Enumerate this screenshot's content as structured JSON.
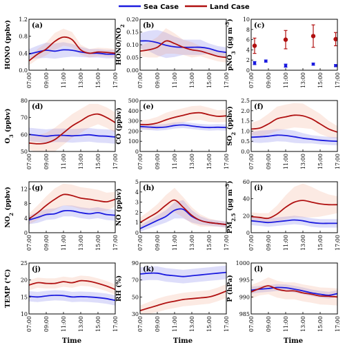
{
  "legend": [
    {
      "label": "Sea Case",
      "color": "#1a1adf"
    },
    {
      "label": "Land Case",
      "color": "#b01010"
    }
  ],
  "x_axis_label": "Time",
  "chart_data": [
    {
      "panel": "(a)",
      "type": "line",
      "ylabel": "HONO (ppbv)",
      "ylim": [
        0,
        1.2
      ],
      "yticks": [
        0,
        0.4,
        0.8,
        1.2
      ],
      "x": [
        "07:00",
        "08:00",
        "09:00",
        "10:00",
        "11:00",
        "12:00",
        "13:00",
        "14:00",
        "15:00",
        "16:00",
        "17:00"
      ],
      "xticks": [
        "07:00",
        "09:00",
        "11:00",
        "13:00",
        "15:00",
        "17:00"
      ],
      "series": [
        {
          "name": "Sea Case",
          "values": [
            0.38,
            0.43,
            0.47,
            0.45,
            0.48,
            0.47,
            0.43,
            0.4,
            0.4,
            0.38,
            0.38
          ],
          "band": [
            0.12,
            0.15,
            0.18,
            0.18,
            0.18,
            0.15,
            0.12,
            0.1,
            0.1,
            0.1,
            0.1
          ]
        },
        {
          "name": "Land Case",
          "values": [
            0.22,
            0.38,
            0.5,
            0.68,
            0.78,
            0.72,
            0.48,
            0.4,
            0.43,
            0.42,
            0.4
          ],
          "band": [
            0.1,
            0.12,
            0.15,
            0.2,
            0.2,
            0.18,
            0.12,
            0.1,
            0.1,
            0.1,
            0.1
          ]
        }
      ]
    },
    {
      "panel": "(b)",
      "type": "line",
      "ylabel": "HONO/NO2",
      "ylim": [
        0,
        0.2
      ],
      "yticks": [
        0,
        0.05,
        0.1,
        0.15,
        0.2
      ],
      "x": [
        "07:00",
        "08:00",
        "09:00",
        "10:00",
        "11:00",
        "12:00",
        "13:00",
        "14:00",
        "15:00",
        "16:00",
        "17:00"
      ],
      "xticks": [
        "07:00",
        "09:00",
        "11:00",
        "13:00",
        "15:00",
        "17:00"
      ],
      "series": [
        {
          "name": "Sea Case",
          "values": [
            0.115,
            0.115,
            0.108,
            0.098,
            0.092,
            0.09,
            0.09,
            0.09,
            0.085,
            0.075,
            0.07
          ],
          "band": [
            0.03,
            0.04,
            0.05,
            0.05,
            0.04,
            0.03,
            0.03,
            0.03,
            0.02,
            0.02,
            0.02
          ]
        },
        {
          "name": "Land Case",
          "values": [
            0.075,
            0.08,
            0.09,
            0.115,
            0.105,
            0.09,
            0.08,
            0.075,
            0.065,
            0.055,
            0.05
          ],
          "band": [
            0.02,
            0.03,
            0.04,
            0.05,
            0.04,
            0.03,
            0.03,
            0.02,
            0.02,
            0.02,
            0.02
          ]
        }
      ]
    },
    {
      "panel": "(c)",
      "type": "scatter",
      "ylabel": "pNO3 (μg m-3)",
      "ylim": [
        0,
        10
      ],
      "yticks": [
        0,
        2,
        4,
        6,
        8,
        10
      ],
      "x": [
        "07:00",
        "09:00",
        "11:00",
        "13:00",
        "15:00",
        "17:00"
      ],
      "xticks": [
        "07:00",
        "09:00",
        "11:00",
        "13:00",
        "15:00",
        "17:00"
      ],
      "series": [
        {
          "name": "Sea Case",
          "points": [
            {
              "x": 7.4,
              "y": 1.4,
              "err": 0.3
            },
            {
              "x": 8.7,
              "y": 1.8,
              "err": 0.2
            },
            {
              "x": 11.0,
              "y": 0.9,
              "err": 0.3
            },
            {
              "x": 14.2,
              "y": 1.2,
              "err": 0.2
            },
            {
              "x": 16.8,
              "y": 0.9,
              "err": 0.2
            }
          ]
        },
        {
          "name": "Land Case",
          "points": [
            {
              "x": 7.4,
              "y": 4.8,
              "err": 1.5
            },
            {
              "x": 11.0,
              "y": 6.0,
              "err": 1.8
            },
            {
              "x": 14.2,
              "y": 6.7,
              "err": 2.2
            },
            {
              "x": 16.8,
              "y": 6.1,
              "err": 1.3
            }
          ]
        }
      ]
    },
    {
      "panel": "(d)",
      "type": "line",
      "ylabel": "O3 (ppbv)",
      "ylim": [
        50,
        80
      ],
      "yticks": [
        50,
        60,
        70,
        80
      ],
      "x": [
        "07:00",
        "08:00",
        "09:00",
        "10:00",
        "11:00",
        "12:00",
        "13:00",
        "14:00",
        "15:00",
        "16:00",
        "17:00"
      ],
      "xticks": [
        "07:00",
        "09:00",
        "11:00",
        "13:00",
        "15:00",
        "17:00"
      ],
      "series": [
        {
          "name": "Sea Case",
          "values": [
            60,
            59.5,
            59,
            59.5,
            59.5,
            59.2,
            59.5,
            59.8,
            59.2,
            59,
            58.5
          ],
          "band": [
            4,
            4,
            4,
            4,
            4,
            4,
            4,
            4,
            4,
            4,
            4
          ]
        },
        {
          "name": "Land Case",
          "values": [
            55,
            54.5,
            55,
            57,
            61,
            65,
            68,
            71,
            72,
            70,
            67
          ],
          "band": [
            4,
            5,
            6,
            7,
            7,
            7,
            7,
            7,
            6,
            6,
            6
          ]
        }
      ]
    },
    {
      "panel": "(e)",
      "type": "line",
      "ylabel": "CO (ppbv)",
      "ylim": [
        0,
        500
      ],
      "yticks": [
        0,
        100,
        200,
        300,
        400,
        500
      ],
      "x": [
        "07:00",
        "08:00",
        "09:00",
        "10:00",
        "11:00",
        "12:00",
        "13:00",
        "14:00",
        "15:00",
        "16:00",
        "17:00"
      ],
      "xticks": [
        "07:00",
        "09:00",
        "11:00",
        "13:00",
        "15:00",
        "17:00"
      ],
      "series": [
        {
          "name": "Sea Case",
          "values": [
            245,
            240,
            235,
            240,
            255,
            260,
            250,
            240,
            235,
            238,
            235
          ],
          "band": [
            30,
            30,
            30,
            30,
            30,
            30,
            30,
            30,
            30,
            30,
            30
          ]
        },
        {
          "name": "Land Case",
          "values": [
            265,
            265,
            280,
            310,
            335,
            355,
            375,
            380,
            360,
            345,
            350
          ],
          "band": [
            40,
            50,
            60,
            70,
            70,
            70,
            70,
            70,
            70,
            60,
            60
          ]
        }
      ]
    },
    {
      "panel": "(f)",
      "type": "line",
      "ylabel": "SO2 (ppbv)",
      "ylim": [
        0,
        2.5
      ],
      "yticks": [
        0,
        0.5,
        1.0,
        1.5,
        2.0,
        2.5
      ],
      "x": [
        "07:00",
        "08:00",
        "09:00",
        "10:00",
        "11:00",
        "12:00",
        "13:00",
        "14:00",
        "15:00",
        "16:00",
        "17:00"
      ],
      "xticks": [
        "07:00",
        "09:00",
        "11:00",
        "13:00",
        "15:00",
        "17:00"
      ],
      "series": [
        {
          "name": "Sea Case",
          "values": [
            0.7,
            0.72,
            0.75,
            0.8,
            0.78,
            0.72,
            0.65,
            0.6,
            0.55,
            0.52,
            0.5
          ],
          "band": [
            0.25,
            0.3,
            0.3,
            0.3,
            0.3,
            0.3,
            0.25,
            0.2,
            0.2,
            0.2,
            0.2
          ]
        },
        {
          "name": "Land Case",
          "values": [
            1.1,
            1.15,
            1.35,
            1.6,
            1.7,
            1.78,
            1.75,
            1.6,
            1.35,
            1.1,
            0.95
          ],
          "band": [
            0.3,
            0.4,
            0.5,
            0.6,
            0.6,
            0.6,
            0.6,
            0.5,
            0.5,
            0.4,
            0.3
          ]
        }
      ]
    },
    {
      "panel": "(g)",
      "type": "line",
      "ylabel": "NO2 (ppbv)",
      "ylim": [
        0,
        14
      ],
      "yticks": [
        0,
        4,
        8,
        12
      ],
      "x": [
        "07:00",
        "08:00",
        "09:00",
        "10:00",
        "11:00",
        "12:00",
        "13:00",
        "14:00",
        "15:00",
        "16:00",
        "17:00"
      ],
      "xticks": [
        "07:00",
        "09:00",
        "11:00",
        "13:00",
        "15:00",
        "17:00"
      ],
      "series": [
        {
          "name": "Sea Case",
          "values": [
            3.5,
            4.2,
            5,
            5.2,
            6,
            6,
            5.5,
            5.2,
            5.5,
            5,
            4.8
          ],
          "band": [
            1.2,
            1.5,
            1.5,
            1.5,
            1.5,
            1.5,
            1.5,
            1.5,
            1.5,
            1.5,
            1.5
          ]
        },
        {
          "name": "Land Case",
          "values": [
            3.8,
            5.5,
            7.5,
            9.2,
            10.5,
            10.2,
            9.5,
            9.2,
            8.8,
            8.5,
            9.2
          ],
          "band": [
            1.5,
            2,
            2.5,
            3,
            3,
            3,
            3,
            3,
            3,
            2.5,
            2
          ]
        }
      ]
    },
    {
      "panel": "(h)",
      "type": "line",
      "ylabel": "NO (ppbv)",
      "ylim": [
        0,
        5
      ],
      "yticks": [
        0,
        1,
        2,
        3,
        4,
        5
      ],
      "x": [
        "07:00",
        "08:00",
        "09:00",
        "10:00",
        "11:00",
        "12:00",
        "13:00",
        "14:00",
        "15:00",
        "16:00",
        "17:00"
      ],
      "xticks": [
        "07:00",
        "09:00",
        "11:00",
        "13:00",
        "15:00",
        "17:00"
      ],
      "series": [
        {
          "name": "Sea Case",
          "values": [
            0.4,
            0.8,
            1.2,
            1.6,
            2.2,
            2.3,
            1.6,
            1.2,
            1.0,
            0.9,
            0.8
          ],
          "band": [
            0.3,
            0.4,
            0.5,
            0.6,
            0.8,
            0.9,
            0.6,
            0.4,
            0.3,
            0.3,
            0.3
          ]
        },
        {
          "name": "Land Case",
          "values": [
            1.0,
            1.5,
            2.0,
            2.7,
            3.2,
            2.5,
            1.7,
            1.2,
            1.0,
            0.9,
            0.8
          ],
          "band": [
            0.5,
            0.6,
            0.8,
            1.0,
            1.2,
            1.0,
            0.8,
            0.6,
            0.4,
            0.3,
            0.3
          ]
        }
      ]
    },
    {
      "panel": "(i)",
      "type": "line",
      "ylabel": "PM2.5 (μg m-3)",
      "ylim": [
        0,
        60
      ],
      "yticks": [
        0,
        20,
        40,
        60
      ],
      "x": [
        "07:00",
        "08:00",
        "09:00",
        "10:00",
        "11:00",
        "12:00",
        "13:00",
        "14:00",
        "15:00",
        "16:00",
        "17:00"
      ],
      "xticks": [
        "07:00",
        "09:00",
        "11:00",
        "13:00",
        "15:00",
        "17:00"
      ],
      "series": [
        {
          "name": "Sea Case",
          "values": [
            14,
            13,
            12,
            13,
            14,
            15,
            14,
            12,
            11,
            11,
            11
          ],
          "band": [
            5,
            5,
            5,
            5,
            5,
            5,
            5,
            5,
            5,
            5,
            5
          ]
        },
        {
          "name": "Land Case",
          "values": [
            19,
            18,
            17,
            22,
            30,
            36,
            38,
            36,
            34,
            33,
            33
          ],
          "band": [
            5,
            5,
            6,
            10,
            14,
            18,
            20,
            18,
            15,
            12,
            10
          ]
        }
      ]
    },
    {
      "panel": "(j)",
      "type": "line",
      "ylabel": "TEMP (°C)",
      "ylim": [
        10,
        25
      ],
      "yticks": [
        10,
        15,
        20,
        25
      ],
      "x": [
        "07:00",
        "08:00",
        "09:00",
        "10:00",
        "11:00",
        "12:00",
        "13:00",
        "14:00",
        "15:00",
        "16:00",
        "17:00"
      ],
      "xticks": [
        "07:00",
        "09:00",
        "11:00",
        "13:00",
        "15:00",
        "17:00"
      ],
      "series": [
        {
          "name": "Sea Case",
          "values": [
            15.2,
            15,
            15.3,
            15.5,
            15.4,
            15,
            15.1,
            15,
            14.8,
            14.5,
            14
          ],
          "band": [
            1.5,
            1.5,
            1.5,
            1.5,
            1.5,
            1.5,
            1.5,
            1.5,
            1.5,
            1.5,
            1.5
          ]
        },
        {
          "name": "Land Case",
          "values": [
            18.5,
            19.2,
            19,
            19,
            19.5,
            19.2,
            19.8,
            19.6,
            19,
            18.2,
            17.2
          ],
          "band": [
            1.5,
            1.5,
            1.5,
            1.5,
            1.5,
            1.5,
            1.5,
            1.5,
            1.5,
            1.5,
            1.5
          ]
        }
      ]
    },
    {
      "panel": "(k)",
      "type": "line",
      "ylabel": "RH (%)",
      "ylim": [
        30,
        90
      ],
      "yticks": [
        30,
        50,
        70,
        90
      ],
      "x": [
        "07:00",
        "08:00",
        "09:00",
        "10:00",
        "11:00",
        "12:00",
        "13:00",
        "14:00",
        "15:00",
        "16:00",
        "17:00"
      ],
      "xticks": [
        "07:00",
        "09:00",
        "11:00",
        "13:00",
        "15:00",
        "17:00"
      ],
      "series": [
        {
          "name": "Sea Case",
          "values": [
            77,
            78,
            78,
            76,
            75,
            74,
            75,
            76,
            77,
            78,
            79
          ],
          "band": [
            8,
            8,
            8,
            8,
            8,
            8,
            8,
            8,
            8,
            8,
            8
          ]
        },
        {
          "name": "Land Case",
          "values": [
            34,
            37,
            40,
            43,
            45,
            47,
            48,
            49,
            50,
            53,
            57
          ],
          "band": [
            6,
            7,
            8,
            8,
            8,
            8,
            8,
            8,
            8,
            8,
            8
          ]
        }
      ]
    },
    {
      "panel": "(l)",
      "type": "line",
      "ylabel": "P (hPa)",
      "ylim": [
        985,
        1000
      ],
      "yticks": [
        985,
        990,
        995,
        1000
      ],
      "x": [
        "07:00",
        "08:00",
        "09:00",
        "10:00",
        "11:00",
        "12:00",
        "13:00",
        "14:00",
        "15:00",
        "16:00",
        "17:00"
      ],
      "xticks": [
        "07:00",
        "09:00",
        "11:00",
        "13:00",
        "15:00",
        "17:00"
      ],
      "series": [
        {
          "name": "Sea Case",
          "values": [
            992,
            992.3,
            992.5,
            992.8,
            992.7,
            992.3,
            991.8,
            991.2,
            990.8,
            990.5,
            991
          ],
          "band": [
            1,
            1,
            1,
            1,
            1,
            1,
            1,
            1,
            1,
            1,
            1
          ]
        },
        {
          "name": "Land Case",
          "values": [
            991.5,
            992.5,
            993.3,
            992.3,
            991.8,
            991.8,
            991.2,
            990.8,
            990.3,
            990.2,
            990
          ],
          "band": [
            2,
            2,
            2.5,
            2.5,
            2.5,
            2.5,
            2.5,
            2.5,
            2.5,
            2.5,
            2.5
          ]
        }
      ]
    }
  ]
}
